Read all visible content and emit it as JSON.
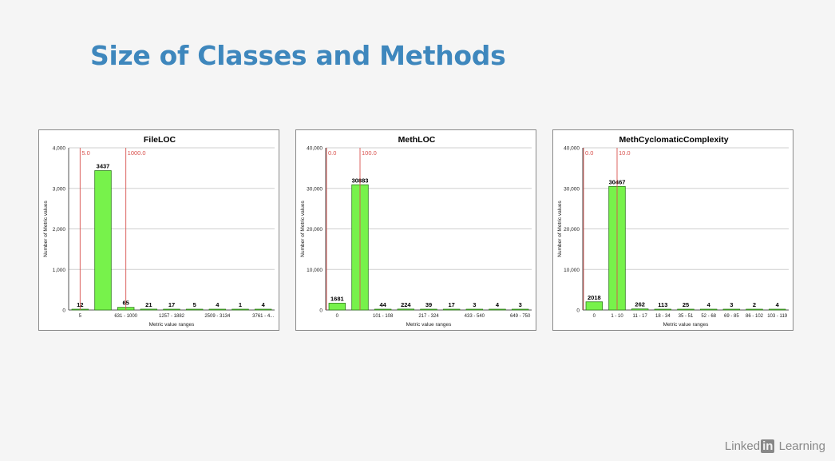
{
  "slide": {
    "title": "Size of Classes and Methods"
  },
  "footer": {
    "brand_part1": "Linked",
    "brand_part2": "in",
    "brand_part3": " Learning"
  },
  "colors": {
    "bar_fill": "#77f24b",
    "bar_stroke": "#2e7d1a",
    "threshold": "#d9534f",
    "title": "#3e87bd"
  },
  "chart_data": [
    {
      "type": "bar",
      "title": "FileLOC",
      "xlabel": "Metric value ranges",
      "ylabel": "Number of Metric values",
      "ylim": [
        0,
        4000
      ],
      "yticks": [
        "0",
        "1,000",
        "2,000",
        "3,000",
        "4,000"
      ],
      "ytick_values": [
        0,
        1000,
        2000,
        3000,
        4000
      ],
      "values": [
        12,
        3437,
        65,
        21,
        17,
        5,
        4,
        1,
        4
      ],
      "value_labels": [
        "12",
        "3437",
        "65",
        "21",
        "17",
        "5",
        "4",
        "1",
        "4"
      ],
      "xtick_labels": [
        "5",
        "",
        "631 - 1000",
        "",
        "1257 - 1882",
        "",
        "2509 - 3134",
        "",
        "3761 - 4..."
      ],
      "thresholds": [
        {
          "label": "5.0",
          "at_bar": 0.5
        },
        {
          "label": "1000.0",
          "at_bar": 2.5
        }
      ],
      "grid": true
    },
    {
      "type": "bar",
      "title": "MethLOC",
      "xlabel": "Metric value ranges",
      "ylabel": "Number of Metric values",
      "ylim": [
        0,
        40000
      ],
      "yticks": [
        "0",
        "10,000",
        "20,000",
        "30,000",
        "40,000"
      ],
      "ytick_values": [
        0,
        10000,
        20000,
        30000,
        40000
      ],
      "values": [
        1681,
        30883,
        44,
        224,
        39,
        17,
        3,
        4,
        3
      ],
      "value_labels": [
        "1681",
        "30883",
        "44",
        "224",
        "39",
        "17",
        "3",
        "4",
        "3"
      ],
      "xtick_labels": [
        "0",
        "",
        "101 - 108",
        "",
        "217 - 324",
        "",
        "433 - 540",
        "",
        "649 - 750"
      ],
      "thresholds": [
        {
          "label": "0.0",
          "at_bar": 0
        },
        {
          "label": "100.0",
          "at_bar": 1.5
        }
      ],
      "grid": true
    },
    {
      "type": "bar",
      "title": "MethCyclomaticComplexity",
      "xlabel": "Metric value ranges",
      "ylabel": "Number of Metric values",
      "ylim": [
        0,
        40000
      ],
      "yticks": [
        "0",
        "10,000",
        "20,000",
        "30,000",
        "40,000"
      ],
      "ytick_values": [
        0,
        10000,
        20000,
        30000,
        40000
      ],
      "values": [
        2018,
        30467,
        262,
        113,
        25,
        4,
        3,
        2,
        4
      ],
      "value_labels": [
        "2018",
        "30467",
        "262",
        "113",
        "25",
        "4",
        "3",
        "2",
        "4"
      ],
      "xtick_labels": [
        "0",
        "1 - 10",
        "11 - 17",
        "18 - 34",
        "35 - 51",
        "52 - 68",
        "69 - 85",
        "86 - 102",
        "103 - 119"
      ],
      "thresholds": [
        {
          "label": "0.0",
          "at_bar": 0
        },
        {
          "label": "10.0",
          "at_bar": 1.5
        }
      ],
      "grid": true
    }
  ]
}
